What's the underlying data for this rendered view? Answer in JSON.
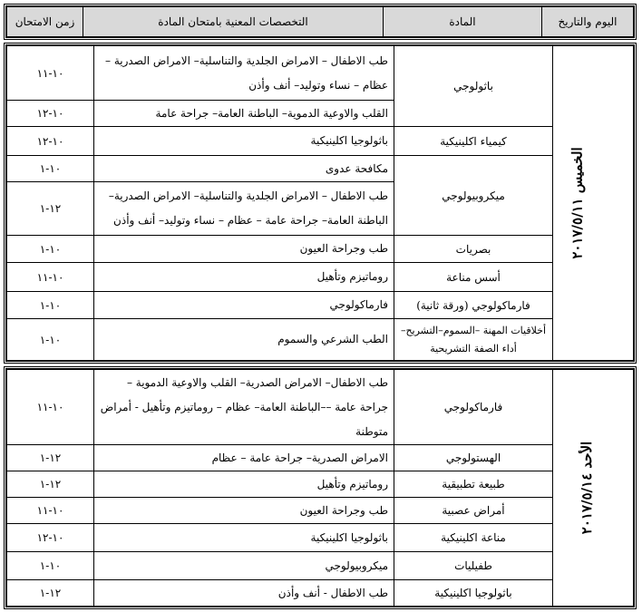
{
  "header": {
    "day_date": "اليوم والتاريخ",
    "subject": "المادة",
    "specialties": "التخصصات المعنية بامتحان المادة",
    "time": "زمن الامتحان"
  },
  "sections": [
    {
      "day": "الخميس ٢٠١٧/٥/١١",
      "subjects": [
        {
          "name": "باثولوجي",
          "entries": [
            {
              "specialties": "طب الاطفال – الامراض الجلدية والتناسلية– الامراض الصدرية – عظام – نساء وتوليد– أنف وأذن",
              "time": "١٠-١١"
            },
            {
              "specialties": "القلب والاوعية الدموية– الباطنة العامة– جراحة عامة",
              "time": "١٠-١٢"
            }
          ]
        },
        {
          "name": "كيمياء اكلينيكية",
          "entries": [
            {
              "specialties": "باثولوجيا اكلينيكية",
              "time": "١٠-١٢"
            }
          ]
        },
        {
          "name": "ميكروبيولوجي",
          "entries": [
            {
              "specialties": "مكافحة عدوى",
              "time": "١٠-١"
            },
            {
              "specialties": "طب الاطفال – الامراض الجلدية والتناسلية– الامراض الصدرية– الباطنة العامة– جراحة عامة – عظام – نساء وتوليد– أنف وأذن",
              "time": "١٢-١"
            }
          ]
        },
        {
          "name": "بصريات",
          "entries": [
            {
              "specialties": "طب وجراحة العيون",
              "time": "١٠-١"
            }
          ]
        },
        {
          "name": "أسس مناعة",
          "entries": [
            {
              "specialties": "روماتيزم وتأهيل",
              "time": "١٠-١١"
            }
          ]
        },
        {
          "name": "فارماكولوجي (ورقة ثانية)",
          "entries": [
            {
              "specialties": "فارماكولوجي",
              "time": "١٠-١"
            }
          ]
        },
        {
          "name": "أخلاقيات المهنة –السموم–التشريح– أداء الصفة التشريحية",
          "entries": [
            {
              "specialties": "الطب الشرعي والسموم",
              "time": "١٠-١"
            }
          ]
        }
      ]
    },
    {
      "day": "الأحد ٢٠١٧/٥/١٤",
      "subjects": [
        {
          "name": "فارماكولوجي",
          "entries": [
            {
              "specialties": "طب الاطفال– الامراض الصدرية– القلب والاوعية الدموية – جراحة عامة ––الباطنة العامة– عظام – روماتيزم وتأهيل - أمراض متوطنة",
              "time": "١٠-١١"
            }
          ]
        },
        {
          "name": "الهستولوجي",
          "entries": [
            {
              "specialties": "الامراض الصدرية– جراحة عامة – عظام",
              "time": "١٢-١"
            }
          ]
        },
        {
          "name": "طبيعة تطبيقية",
          "entries": [
            {
              "specialties": "روماتيزم وتأهيل",
              "time": "١٢-١"
            }
          ]
        },
        {
          "name": "أمراض عصبية",
          "entries": [
            {
              "specialties": "طب وجراحة العيون",
              "time": "١٠-١١"
            }
          ]
        },
        {
          "name": "مناعة اكلينيكية",
          "entries": [
            {
              "specialties": "باثولوجيا اكلينيكية",
              "time": "١٠-١٢"
            }
          ]
        },
        {
          "name": "طفيليات",
          "entries": [
            {
              "specialties": "ميكروبيولوجي",
              "time": "١٠-١"
            }
          ]
        },
        {
          "name": "باثولوجيا اكلينيكية",
          "entries": [
            {
              "specialties": "طب الاطفال - أنف وأذن",
              "time": "١٢-١"
            }
          ]
        }
      ]
    }
  ]
}
